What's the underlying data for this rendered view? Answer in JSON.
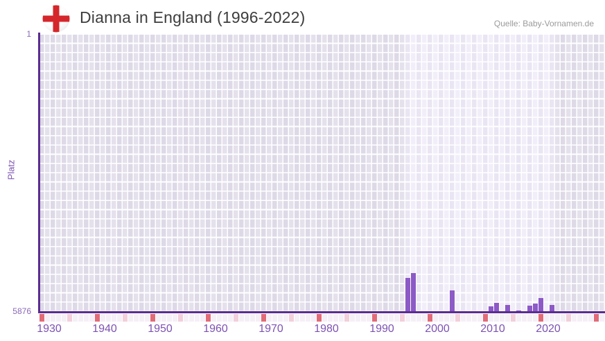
{
  "header": {
    "title": "Dianna in England (1996-2022)",
    "source": "Quelle: Baby-Vornamen.de",
    "flag_icon": "england-flag"
  },
  "axes": {
    "ylabel": "Platz",
    "y_top_tick": "1",
    "y_bottom_tick": "5876",
    "x_tick_labels": [
      "1930",
      "1940",
      "1950",
      "1960",
      "1970",
      "1980",
      "1990",
      "2000",
      "2010",
      "2020"
    ]
  },
  "chart_data": {
    "type": "bar",
    "title": "Dianna in England (1996-2022)",
    "ylabel": "Platz",
    "y_inverted": true,
    "ylim": [
      1,
      5876
    ],
    "x_axis_range": [
      1930,
      2031
    ],
    "highlight_year_range": [
      1996,
      2022
    ],
    "decade_tick_years": [
      1930,
      1940,
      1950,
      1960,
      1970,
      1980,
      1990,
      2000,
      2010,
      2020
    ],
    "grid": true,
    "points": [
      {
        "year": 1996,
        "rank": 5150
      },
      {
        "year": 1997,
        "rank": 5050
      },
      {
        "year": 2004,
        "rank": 5415
      },
      {
        "year": 2011,
        "rank": 5760
      },
      {
        "year": 2012,
        "rank": 5690
      },
      {
        "year": 2014,
        "rank": 5725
      },
      {
        "year": 2016,
        "rank": 5850
      },
      {
        "year": 2018,
        "rank": 5745
      },
      {
        "year": 2019,
        "rank": 5700
      },
      {
        "year": 2020,
        "rank": 5580
      },
      {
        "year": 2022,
        "rank": 5735
      }
    ]
  },
  "colors": {
    "bar": "#8c59c6",
    "axis_line": "#5b2c90",
    "tick_label": "#7c52b2",
    "y_tick_label": "#8a68b8",
    "plot_bg": "#e5e1ec",
    "highlight_bg": "#f2eef9",
    "strip_default": "#f5eff6",
    "strip_half_decade": "#f2cfda",
    "strip_decade": "#e16b77",
    "title": "#3d3d3d",
    "source": "#9a9a9a",
    "flag_cross": "#d5262b"
  }
}
